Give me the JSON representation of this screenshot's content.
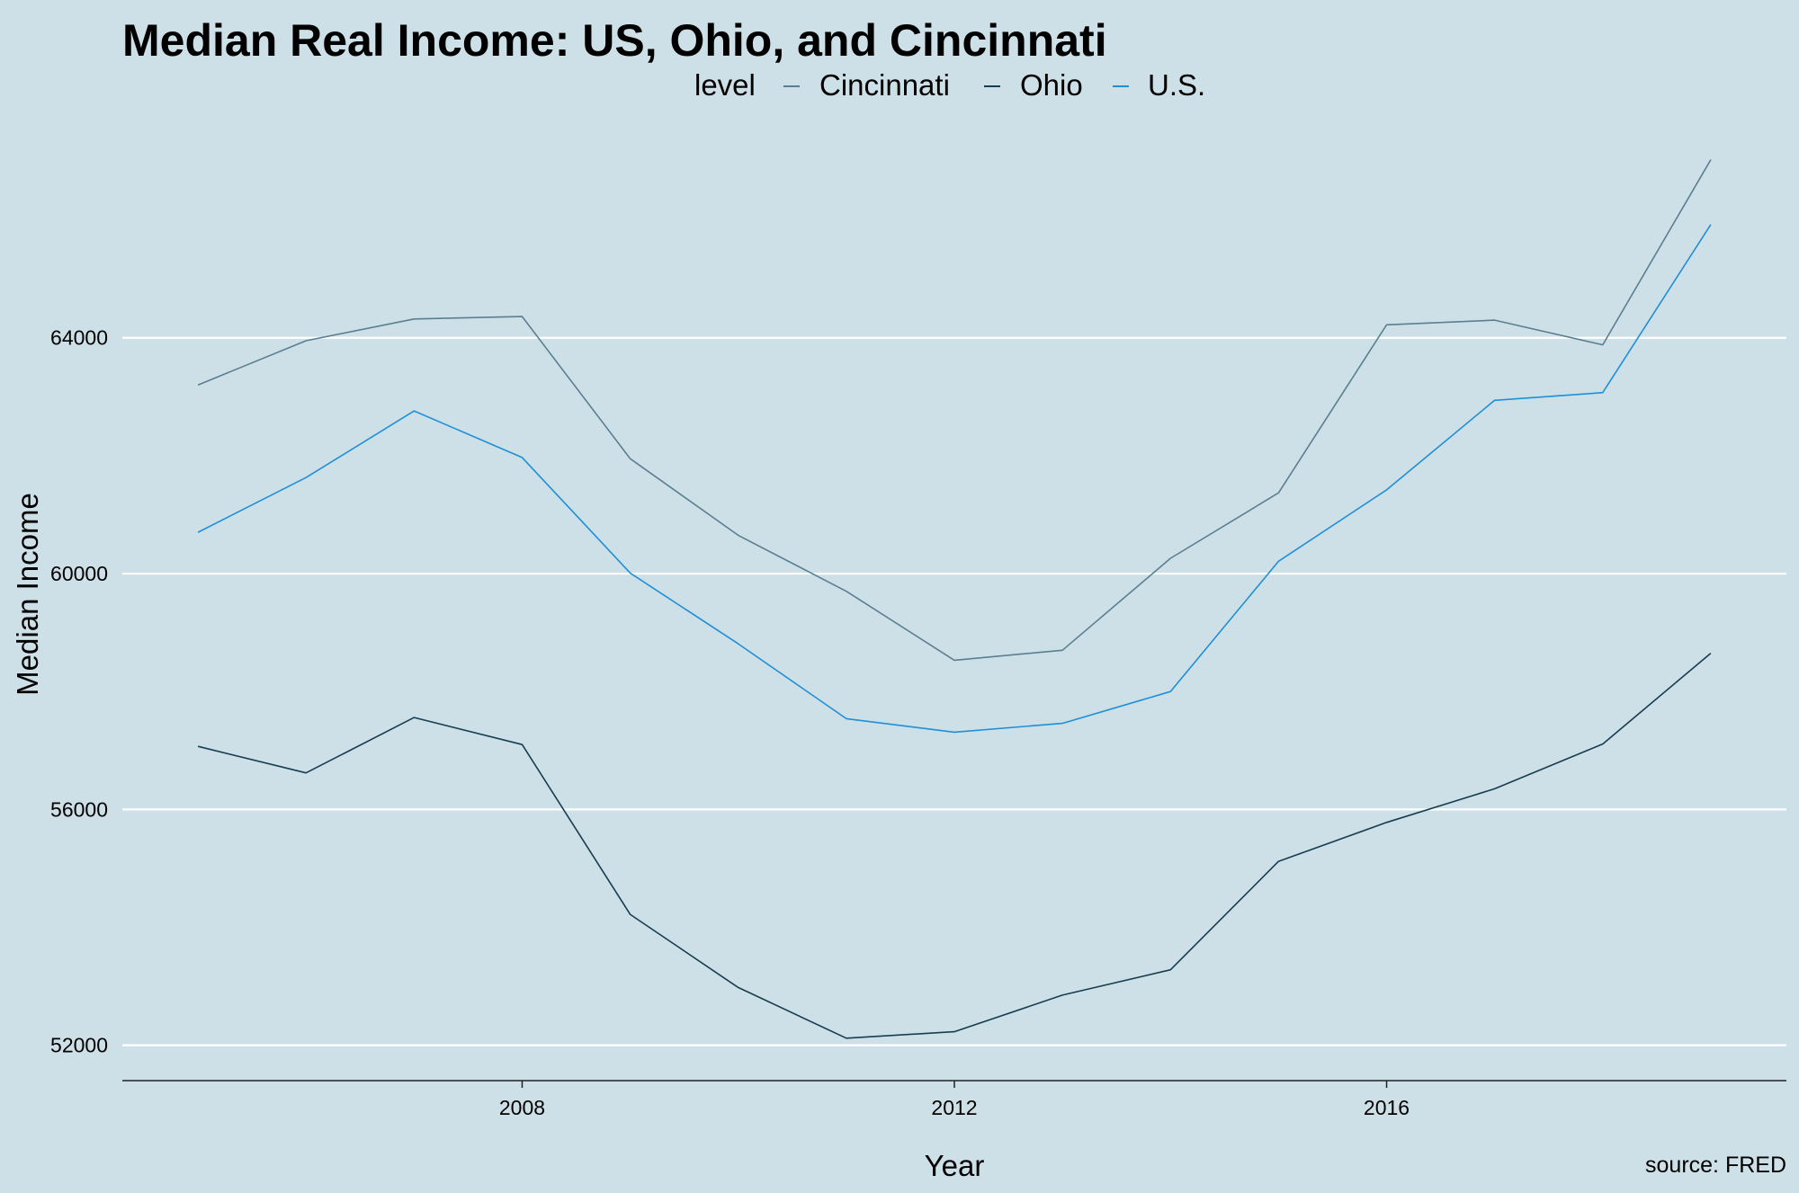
{
  "chart_data": {
    "type": "line",
    "title": "Median Real Income: US, Ohio, and Cincinnati",
    "xlabel": "Year",
    "ylabel": "Median Income",
    "caption": "source: FRED",
    "legend": {
      "title": "level",
      "position": "top"
    },
    "x": [
      2005,
      2006,
      2007,
      2008,
      2009,
      2010,
      2011,
      2012,
      2013,
      2014,
      2015,
      2016,
      2017,
      2018,
      2019
    ],
    "xlim": [
      2004.3,
      2019.7
    ],
    "ylim": [
      51400,
      67900
    ],
    "x_ticks": [
      2008,
      2012,
      2016
    ],
    "x_tick_labels": [
      "2008",
      "2012",
      "2016"
    ],
    "y_ticks": [
      52000,
      56000,
      60000,
      64000
    ],
    "y_tick_labels": [
      "52000",
      "56000",
      "60000",
      "64000"
    ],
    "grid": "horizontal major",
    "series": [
      {
        "name": "Cincinnati",
        "color": "#5b7f90",
        "values": [
          63200,
          63950,
          64320,
          64360,
          61950,
          60650,
          59700,
          58530,
          58700,
          60260,
          61370,
          64220,
          64300,
          63880,
          67020
        ]
      },
      {
        "name": "Ohio",
        "color": "#173d50",
        "values": [
          57070,
          56620,
          57560,
          57100,
          54220,
          52980,
          52120,
          52230,
          52850,
          53280,
          55120,
          55780,
          56350,
          57110,
          58650
        ]
      },
      {
        "name": "U.S.",
        "color": "#1f8fd8",
        "values": [
          60700,
          61630,
          62760,
          61970,
          60010,
          58810,
          57540,
          57310,
          57460,
          58000,
          60210,
          61420,
          62940,
          63070,
          65920
        ]
      }
    ]
  }
}
